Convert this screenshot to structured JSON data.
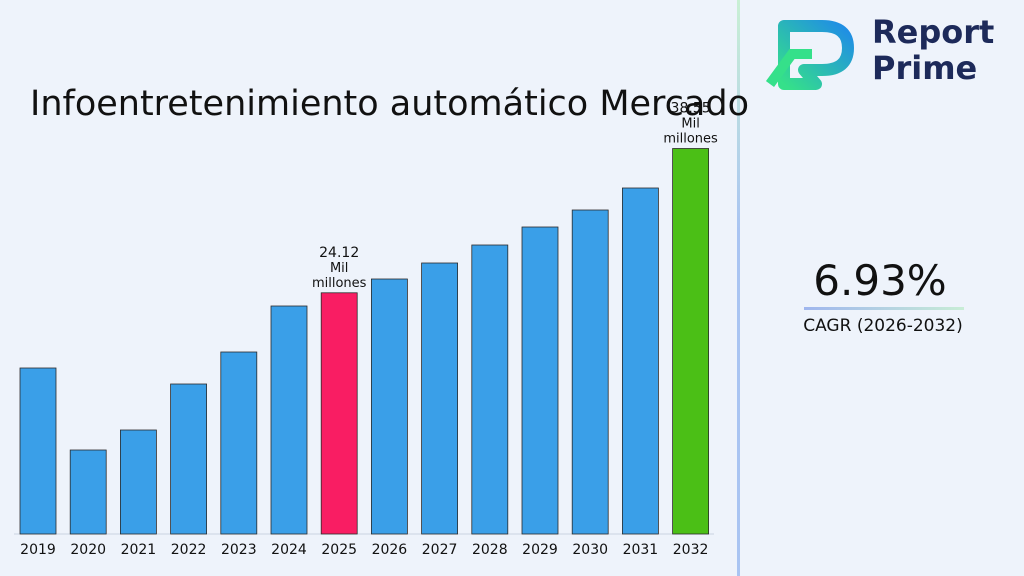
{
  "title": "Infoentretenimiento automático Mercado",
  "brand": {
    "line1": "Report",
    "line2": "Prime",
    "color": "#1d2a5a"
  },
  "cagr": {
    "value": "6.93%",
    "label": "CAGR (2026-2032)"
  },
  "chart_data": {
    "type": "bar",
    "title": "Infoentretenimiento automático Mercado",
    "categories": [
      "2019",
      "2020",
      "2021",
      "2022",
      "2023",
      "2024",
      "2025",
      "2026",
      "2027",
      "2028",
      "2029",
      "2030",
      "2031",
      "2032"
    ],
    "values": [
      16.6,
      8.4,
      10.4,
      15.0,
      18.2,
      22.8,
      24.12,
      25.5,
      27.1,
      28.9,
      30.7,
      32.4,
      34.6,
      38.55
    ],
    "ylim": [
      0,
      40
    ],
    "annotations": [
      {
        "category": "2025",
        "lines": [
          "24.12",
          "Mil",
          "millones"
        ]
      },
      {
        "category": "2032",
        "lines": [
          "38.55",
          "Mil",
          "millones"
        ]
      }
    ],
    "colors": {
      "default": "#3a9fe8",
      "2025": "#f91d63",
      "2032": "#4bbf16"
    },
    "grid": false,
    "legend": "none"
  }
}
